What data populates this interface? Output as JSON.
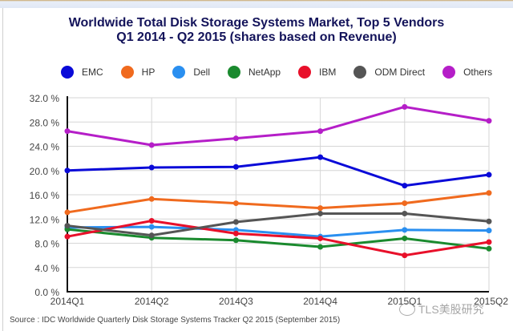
{
  "chart_data": {
    "type": "line",
    "title": "Worldwide Total Disk Storage Systems Market, Top 5 Vendors",
    "subtitle": "Q1 2014 - Q2 2015 (shares based on Revenue)",
    "xlabel": "",
    "ylabel": "",
    "categories": [
      "2014Q1",
      "2014Q2",
      "2014Q3",
      "2014Q4",
      "2015Q1",
      "2015Q2"
    ],
    "ylim": [
      0,
      32
    ],
    "yticks": [
      0,
      4,
      8,
      12,
      16,
      20,
      24,
      28,
      32
    ],
    "ytick_labels": [
      "0.0 %",
      "4.0 %",
      "8.0 %",
      "12.0 %",
      "16.0 %",
      "20.0 %",
      "24.0 %",
      "28.0 %",
      "32.0 %"
    ],
    "grid": true,
    "legend_position": "top",
    "series": [
      {
        "name": "EMC",
        "color": "#0a0ad8",
        "values": [
          20.0,
          20.5,
          20.6,
          22.2,
          17.5,
          19.3
        ]
      },
      {
        "name": "HP",
        "color": "#f06a1e",
        "values": [
          13.1,
          15.3,
          14.6,
          13.8,
          14.6,
          16.3
        ]
      },
      {
        "name": "Dell",
        "color": "#2a8ff0",
        "values": [
          10.6,
          10.7,
          10.2,
          9.1,
          10.2,
          10.1
        ]
      },
      {
        "name": "NetApp",
        "color": "#1a8a2e",
        "values": [
          10.3,
          8.9,
          8.5,
          7.4,
          8.8,
          7.1
        ]
      },
      {
        "name": "IBM",
        "color": "#e8102a",
        "values": [
          9.1,
          11.7,
          9.6,
          8.8,
          6.0,
          8.2
        ]
      },
      {
        "name": "ODM Direct",
        "color": "#555555",
        "values": [
          10.9,
          9.3,
          11.5,
          12.9,
          12.9,
          11.6
        ]
      },
      {
        "name": "Others",
        "color": "#b51ec8",
        "values": [
          26.5,
          24.2,
          25.3,
          26.5,
          30.5,
          28.2
        ]
      }
    ],
    "source": "Source : IDC Worldwide Quarterly Disk Storage Systems Tracker Q2 2015 (September 2015)"
  },
  "watermark": "TLS美股研究"
}
